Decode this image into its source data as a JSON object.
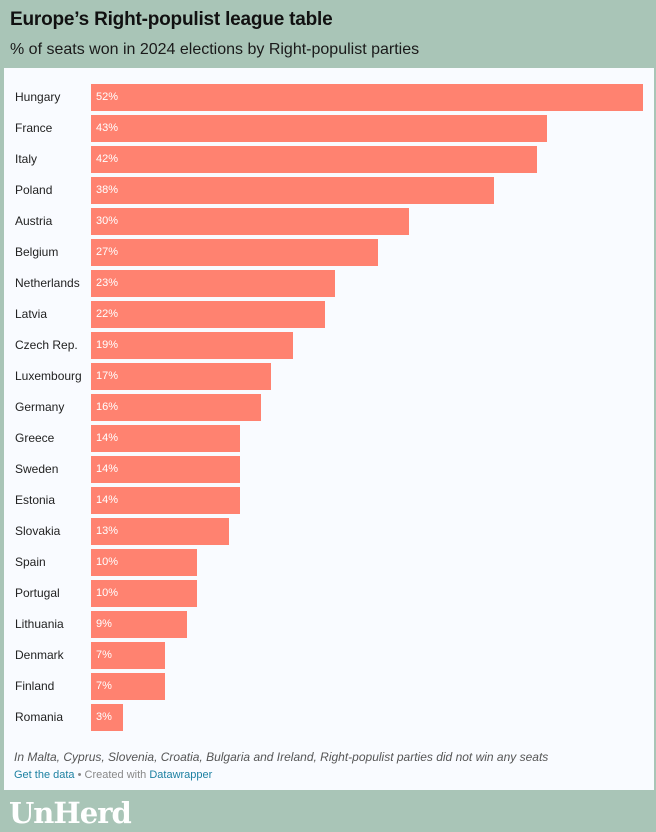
{
  "header": {
    "title": "Europe’s Right-populist league table",
    "subtitle": "% of seats won in 2024 elections by Right-populist parties"
  },
  "chart_data": {
    "type": "bar",
    "orientation": "horizontal",
    "title": "Europe’s Right-populist league table",
    "subtitle": "% of seats won in 2024 elections by Right-populist parties",
    "categories": [
      "Hungary",
      "France",
      "Italy",
      "Poland",
      "Austria",
      "Belgium",
      "Netherlands",
      "Latvia",
      "Czech Rep.",
      "Luxembourg",
      "Germany",
      "Greece",
      "Sweden",
      "Estonia",
      "Slovakia",
      "Spain",
      "Portugal",
      "Lithuania",
      "Denmark",
      "Finland",
      "Romania"
    ],
    "values": [
      52,
      43,
      42,
      38,
      30,
      27,
      23,
      22,
      19,
      17,
      16,
      14,
      14,
      14,
      13,
      10,
      10,
      9,
      7,
      7,
      3
    ],
    "value_labels": [
      "52%",
      "43%",
      "42%",
      "38%",
      "30%",
      "27%",
      "23%",
      "22%",
      "19%",
      "17%",
      "16%",
      "14%",
      "14%",
      "14%",
      "13%",
      "10%",
      "10%",
      "9%",
      "7%",
      "7%",
      "3%"
    ],
    "xlim": [
      0,
      52
    ],
    "xlabel": "",
    "ylabel": "",
    "bar_color": "#ff8270"
  },
  "footer": {
    "note": "In Malta, Cyprus, Slovenia, Croatia, Bulgaria and Ireland, Right-populist parties did not win any seats",
    "get_data": "Get the data",
    "separator": " • Created with ",
    "tool": "Datawrapper"
  },
  "brand": {
    "logo": "UnHerd"
  },
  "colors": {
    "background": "#a9c5b7",
    "panel": "#f9fbff",
    "bar": "#ff8270",
    "link": "#1d81a2"
  }
}
